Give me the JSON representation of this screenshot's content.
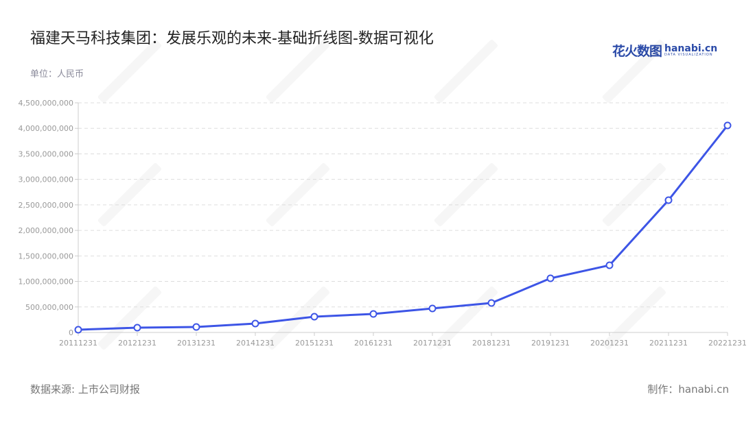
{
  "title": "福建天马科技集团：发展乐观的未来-基础折线图-数据可视化",
  "logo": {
    "cn": "花火数图",
    "en": "hanabi.cn",
    "sub": "DATA VISUALIZATION"
  },
  "watermark": "花火数图 hanabi.cn",
  "footer": {
    "source": "数据来源: 上市公司财报",
    "credit": "制作：hanabi.cn"
  },
  "chart_data": {
    "type": "line",
    "title": "福建天马科技集团：发展乐观的未来-基础折线图-数据可视化",
    "ylabel": "单位：人民币",
    "xlabel": "",
    "categories": [
      "20111231",
      "20121231",
      "20131231",
      "20141231",
      "20151231",
      "20161231",
      "20171231",
      "20181231",
      "20191231",
      "20201231",
      "20211231",
      "20221231"
    ],
    "values": [
      54000000,
      94000000,
      107000000,
      175000000,
      309000000,
      363000000,
      470000000,
      578000000,
      1061000000,
      1317000000,
      2593000000,
      4057000000
    ],
    "ylim": [
      0,
      4500000000
    ],
    "yticks": [
      "0",
      "500,000,000",
      "1,000,000,000",
      "1,500,000,000",
      "2,000,000,000",
      "2,500,000,000",
      "3,000,000,000",
      "3,500,000,000",
      "4,000,000,000",
      "4,500,000,000"
    ],
    "grid": true,
    "line_color": "#3d55e6"
  }
}
